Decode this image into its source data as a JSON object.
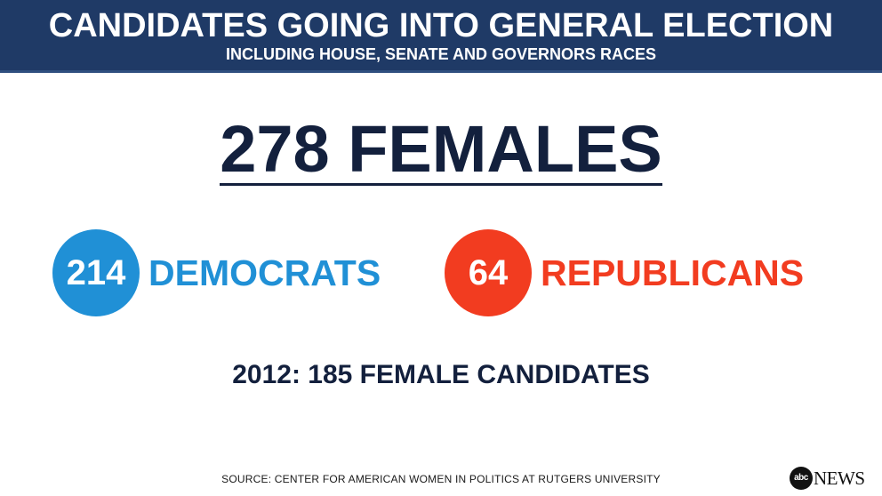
{
  "header": {
    "title": "CANDIDATES GOING INTO GENERAL ELECTION",
    "subtitle": "INCLUDING HOUSE, SENATE AND GOVERNORS RACES"
  },
  "headline": {
    "text": "278 FEMALES"
  },
  "parties": {
    "democrats": {
      "count": "214",
      "label": "DEMOCRATS",
      "color": "#2090d6"
    },
    "republicans": {
      "count": "64",
      "label": "REPUBLICANS",
      "color": "#f23c20"
    }
  },
  "comparison": {
    "text": "2012: 185 FEMALE CANDIDATES"
  },
  "source": {
    "text": "SOURCE: CENTER FOR AMERICAN WOMEN  IN POLITICS AT RUTGERS UNIVERSITY"
  },
  "logo": {
    "mark": "abc",
    "word": "NEWS"
  },
  "colors": {
    "header_bg": "#1f3a66",
    "navy_text": "#13203d"
  }
}
